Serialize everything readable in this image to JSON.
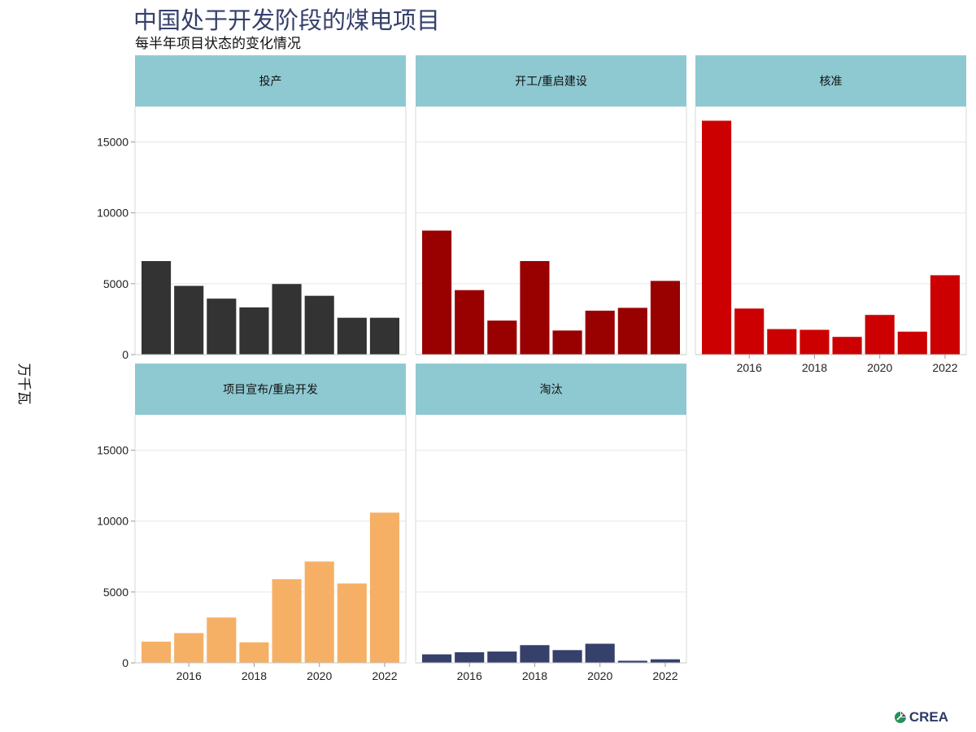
{
  "header": {
    "title": "中国处于开发阶段的煤电项目",
    "subtitle": "每半年项目状态的变化情况"
  },
  "brand": {
    "name": "CREA",
    "icon": "crea-logo-icon"
  },
  "chart_data": {
    "type": "bar",
    "layout": "facet-grid",
    "ylabel": "万千瓦",
    "ylim": [
      0,
      17500
    ],
    "yticks": [
      0,
      5000,
      10000,
      15000
    ],
    "xticks": [
      2016,
      2018,
      2020,
      2022
    ],
    "xlim": [
      2014.5,
      2022.5
    ],
    "x": [
      2015,
      2016,
      2017,
      2018,
      2019,
      2020,
      2021,
      2022
    ],
    "grid": true,
    "panels": [
      {
        "name": "投产",
        "color": "#333333",
        "values": [
          6600,
          4850,
          3950,
          3330,
          4980,
          4150,
          2600,
          2600
        ]
      },
      {
        "name": "开工/重启建设",
        "color": "#990000",
        "values": [
          8750,
          4550,
          2400,
          6600,
          1700,
          3100,
          3300,
          5200
        ]
      },
      {
        "name": "核准",
        "color": "#cc0000",
        "values": [
          16500,
          3250,
          1800,
          1750,
          1250,
          2800,
          1620,
          5600
        ]
      },
      {
        "name": "项目宣布/重启开发",
        "color": "#f5b066",
        "values": [
          1500,
          2100,
          3200,
          1450,
          5900,
          7150,
          5600,
          10600
        ]
      },
      {
        "name": "淘汰",
        "color": "#35406b",
        "values": [
          600,
          750,
          800,
          1250,
          900,
          1350,
          150,
          250
        ]
      }
    ]
  }
}
